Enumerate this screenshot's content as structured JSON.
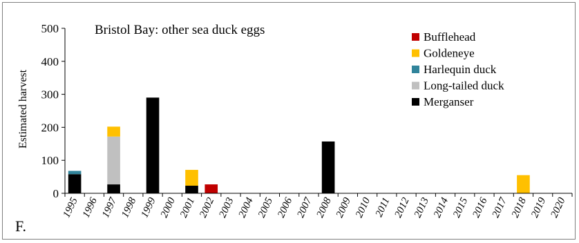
{
  "chart_data": {
    "type": "bar",
    "stacked": true,
    "title": "Bristol Bay: other sea duck eggs",
    "ylabel": "Estimated harvest",
    "xlabel": "",
    "ylim": [
      0,
      500
    ],
    "yticks": [
      0,
      100,
      200,
      300,
      400,
      500
    ],
    "grid": false,
    "legend_position": "top-right",
    "panel_label": "F.",
    "categories": [
      "1995",
      "1996",
      "1997",
      "1998",
      "1999",
      "2000",
      "2001",
      "2002",
      "2003",
      "2004",
      "2005",
      "2006",
      "2007",
      "2008",
      "2009",
      "2010",
      "2011",
      "2012",
      "2013",
      "2014",
      "2015",
      "2016",
      "2017",
      "2018",
      "2019",
      "2020"
    ],
    "series": [
      {
        "name": "Merganser",
        "color": "#000000",
        "values": [
          58,
          0,
          27,
          0,
          290,
          0,
          23,
          0,
          0,
          0,
          0,
          0,
          0,
          157,
          0,
          0,
          0,
          0,
          0,
          0,
          0,
          0,
          0,
          0,
          0,
          0
        ]
      },
      {
        "name": "Long-tailed duck",
        "color": "#c0c0c0",
        "values": [
          0,
          0,
          145,
          0,
          0,
          0,
          0,
          0,
          0,
          0,
          0,
          0,
          0,
          0,
          0,
          0,
          0,
          0,
          0,
          0,
          0,
          0,
          0,
          0,
          0,
          0
        ]
      },
      {
        "name": "Harlequin duck",
        "color": "#31849b",
        "values": [
          10,
          0,
          0,
          0,
          0,
          0,
          0,
          0,
          0,
          0,
          0,
          0,
          0,
          0,
          0,
          0,
          0,
          0,
          0,
          0,
          0,
          0,
          0,
          0,
          0,
          0
        ]
      },
      {
        "name": "Goldeneye",
        "color": "#ffc000",
        "values": [
          0,
          0,
          30,
          0,
          0,
          0,
          48,
          0,
          0,
          0,
          0,
          0,
          0,
          0,
          0,
          0,
          0,
          0,
          0,
          0,
          0,
          0,
          0,
          55,
          0,
          0
        ]
      },
      {
        "name": "Bufflehead",
        "color": "#c00000",
        "values": [
          0,
          0,
          0,
          0,
          0,
          0,
          0,
          27,
          0,
          0,
          0,
          0,
          0,
          0,
          0,
          0,
          0,
          0,
          0,
          0,
          0,
          0,
          0,
          0,
          0,
          0
        ]
      }
    ],
    "legend_order": [
      "Bufflehead",
      "Goldeneye",
      "Harlequin duck",
      "Long-tailed duck",
      "Merganser"
    ]
  }
}
